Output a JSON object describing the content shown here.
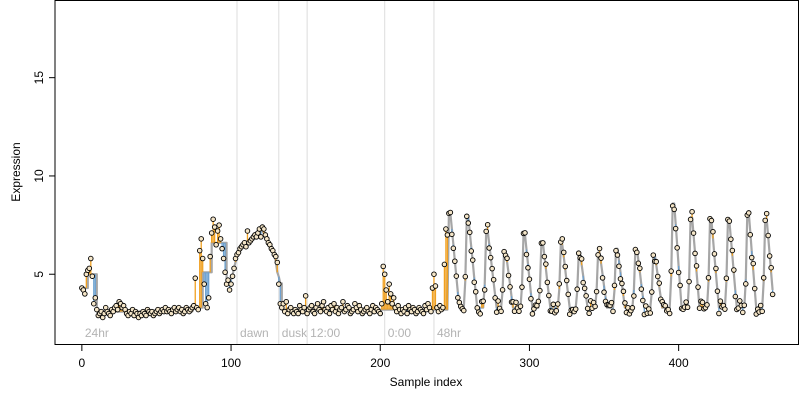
{
  "chart_data": {
    "type": "scatter",
    "title": "",
    "xlabel": "Sample index",
    "ylabel": "Expression",
    "xlim": [
      -18,
      480
    ],
    "ylim": [
      1.4,
      18.9
    ],
    "x_ticks": [
      0,
      100,
      200,
      300,
      400
    ],
    "y_ticks": [
      5,
      10,
      15
    ],
    "grid": false,
    "legend": "none",
    "colors": {
      "points_fill": "#f5e6c8",
      "points_edge": "#000000",
      "fit_line": "#a6a6a6",
      "residual_pos": "#f0a020",
      "residual_neg": "#6aa0d0",
      "marker_line": "#dddddd",
      "marker_text": "#b3b3b3"
    },
    "markers": [
      {
        "x": 104,
        "label": "dawn"
      },
      {
        "x": 132,
        "label": "dusk"
      },
      {
        "x": 151,
        "label": "12:00"
      },
      {
        "x": 203,
        "label": "0:00"
      },
      {
        "x": 236,
        "label": "48hr"
      }
    ],
    "start_label": {
      "x": 0,
      "label": "24hr"
    },
    "segments": [
      {
        "x0": 0,
        "x1": 3,
        "fit": 4.3,
        "values": [
          4.3,
          4.2,
          4.0,
          5.0
        ]
      },
      {
        "x0": 4,
        "x1": 9,
        "fit": 5.0,
        "values": [
          5.2,
          5.3,
          5.8,
          4.9,
          3.5,
          3.8
        ]
      },
      {
        "x0": 10,
        "x1": 74,
        "fit": 3.1,
        "values": [
          3.2,
          2.9,
          3.0,
          3.1,
          2.8,
          3.0,
          3.3,
          3.1,
          3.0,
          2.9,
          3.2,
          3.1,
          3.3,
          3.4,
          3.2,
          3.6,
          3.5,
          3.3,
          3.4,
          3.2,
          3.0,
          2.9,
          3.1,
          3.0,
          3.2,
          2.9,
          3.1,
          3.0,
          2.8,
          3.0,
          2.9,
          3.1,
          3.0,
          2.9,
          3.2,
          3.1,
          3.0,
          3.1,
          2.9,
          3.0,
          3.1,
          3.2,
          3.0,
          3.1,
          3.2,
          3.1,
          3.3,
          3.1,
          3.2,
          3.1,
          3.0,
          3.2,
          3.3,
          3.1,
          3.2,
          3.3,
          3.1,
          3.2,
          3.0,
          3.1,
          3.3,
          3.2,
          3.1,
          3.2,
          3.3
        ]
      },
      {
        "x0": 75,
        "x1": 80,
        "fit": 3.3,
        "values": [
          3.4,
          4.8,
          3.3,
          3.2,
          6.2,
          6.8
        ]
      },
      {
        "x0": 81,
        "x1": 86,
        "fit": 5.1,
        "values": [
          5.8,
          4.5,
          3.5,
          3.3,
          3.8,
          5.9
        ]
      },
      {
        "x0": 87,
        "x1": 96,
        "fit": 6.6,
        "values": [
          7.1,
          7.8,
          7.4,
          6.5,
          7.2,
          7.5,
          6.8,
          6.3,
          5.8,
          5.1
        ]
      },
      {
        "x0": 97,
        "x1": 133,
        "fit": "curve",
        "values": [
          4.5,
          4.7,
          4.2,
          4.5,
          4.9,
          5.3,
          5.8,
          6.0,
          6.1,
          6.3,
          6.4,
          6.5,
          6.6,
          6.4,
          7.2,
          6.6,
          6.7,
          6.8,
          6.9,
          7.0,
          6.9,
          7.1,
          7.3,
          6.9,
          7.4,
          7.3,
          7.0,
          6.8,
          6.6,
          6.5,
          6.3,
          6.2,
          6.0,
          5.9,
          5.6,
          4.5,
          3.5
        ]
      },
      {
        "x0": 134,
        "x1": 200,
        "fit": 3.2,
        "values": [
          3.3,
          3.5,
          3.1,
          3.6,
          3.0,
          3.2,
          3.3,
          3.1,
          3.0,
          3.2,
          3.1,
          3.0,
          3.4,
          3.2,
          3.1,
          3.3,
          3.9,
          3.0,
          3.2,
          3.3,
          3.4,
          3.1,
          3.0,
          3.3,
          3.5,
          3.2,
          3.1,
          3.4,
          3.6,
          3.2,
          3.1,
          3.3,
          3.0,
          3.4,
          3.2,
          3.5,
          3.1,
          3.3,
          3.0,
          3.2,
          3.3,
          3.6,
          3.1,
          3.2,
          3.4,
          3.3,
          3.0,
          3.1,
          3.2,
          3.5,
          3.3,
          3.1,
          3.4,
          3.2,
          3.0,
          3.1,
          3.2,
          3.3,
          3.1,
          3.0,
          3.2,
          3.4,
          3.1,
          3.3,
          3.2,
          3.1,
          3.0
        ]
      },
      {
        "x0": 201,
        "x1": 205,
        "fit": 3.2,
        "values": [
          3.5,
          5.4,
          5.0,
          4.2,
          3.6
        ]
      },
      {
        "x0": 206,
        "x1": 214,
        "fit": 3.2,
        "values": [
          4.5,
          4.0,
          3.5,
          3.8,
          3.3,
          3.1,
          3.4,
          3.2,
          3.0
        ]
      },
      {
        "x0": 215,
        "x1": 237,
        "fit": 3.2,
        "values": [
          3.2,
          3.1,
          3.3,
          3.0,
          3.4,
          3.2,
          3.1,
          3.3,
          3.2,
          3.0,
          3.1,
          3.3,
          3.2,
          3.1,
          3.0,
          3.4,
          3.2,
          3.5,
          3.3,
          3.1,
          4.3,
          5.0,
          4.4
        ]
      },
      {
        "x0": 238,
        "x1": 245,
        "fit": 3.2,
        "values": [
          3.3,
          3.1,
          3.4,
          3.2,
          3.3,
          5.5,
          7.3,
          7.0
        ]
      }
    ],
    "pulses": {
      "x_start": 246,
      "x_end": 463,
      "baseline": 3.3,
      "peaks": [
        {
          "x": 246,
          "y": 8.1,
          "width": 5
        },
        {
          "x": 258,
          "y": 7.9,
          "width": 5
        },
        {
          "x": 271,
          "y": 7.2,
          "width": 5
        },
        {
          "x": 283,
          "y": 6.2,
          "width": 4
        },
        {
          "x": 296,
          "y": 7.0,
          "width": 4
        },
        {
          "x": 308,
          "y": 6.6,
          "width": 4
        },
        {
          "x": 321,
          "y": 6.5,
          "width": 4
        },
        {
          "x": 333,
          "y": 6.0,
          "width": 4
        },
        {
          "x": 346,
          "y": 6.1,
          "width": 4
        },
        {
          "x": 358,
          "y": 6.3,
          "width": 4
        },
        {
          "x": 371,
          "y": 6.3,
          "width": 4
        },
        {
          "x": 383,
          "y": 6.0,
          "width": 4
        },
        {
          "x": 396,
          "y": 8.6,
          "width": 4
        },
        {
          "x": 408,
          "y": 7.9,
          "width": 4
        },
        {
          "x": 421,
          "y": 7.7,
          "width": 4
        },
        {
          "x": 433,
          "y": 7.7,
          "width": 4
        },
        {
          "x": 446,
          "y": 8.1,
          "width": 4
        },
        {
          "x": 458,
          "y": 7.8,
          "width": 4
        }
      ]
    }
  }
}
